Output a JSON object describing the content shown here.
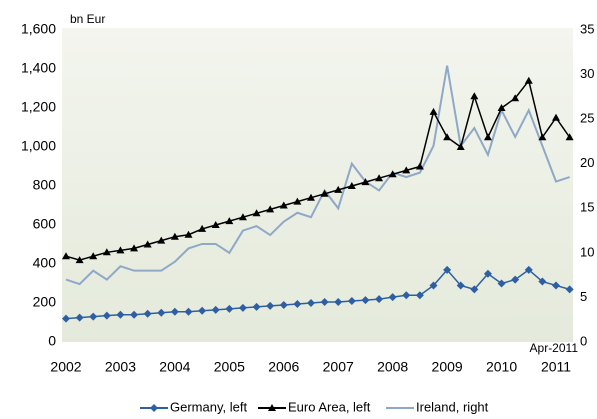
{
  "chart_data": {
    "type": "line",
    "y_unit_label": "bn Eur",
    "annotation": "Apr-2011",
    "x": [
      2002,
      2002.25,
      2002.5,
      2002.75,
      2003,
      2003.25,
      2003.5,
      2003.75,
      2004,
      2004.25,
      2004.5,
      2004.75,
      2005,
      2005.25,
      2005.5,
      2005.75,
      2006,
      2006.25,
      2006.5,
      2006.75,
      2007,
      2007.25,
      2007.5,
      2007.75,
      2008,
      2008.25,
      2008.5,
      2008.75,
      2009,
      2009.25,
      2009.5,
      2009.75,
      2010,
      2010.25,
      2010.5,
      2010.75,
      2011,
      2011.25
    ],
    "xlim": [
      2002,
      2011.33
    ],
    "xticks": [
      2002,
      2003,
      2004,
      2005,
      2006,
      2007,
      2008,
      2009,
      2010,
      2011
    ],
    "ylim": [
      0,
      1600
    ],
    "yticks": [
      0,
      200,
      400,
      600,
      800,
      {
        "value": 1000,
        "label": "1,000"
      },
      {
        "value": 1200,
        "label": "1,200"
      },
      {
        "value": 1400,
        "label": "1,400"
      },
      {
        "value": 1600,
        "label": "1,600"
      }
    ],
    "y2lim": [
      0,
      35
    ],
    "y2ticks": [
      0,
      5,
      10,
      15,
      20,
      25,
      30,
      35
    ],
    "legend": "bottom",
    "series": [
      {
        "name": "Germany, left",
        "color": "#2e5fa3",
        "marker": "diamond",
        "values": [
          120,
          125,
          130,
          135,
          140,
          140,
          145,
          150,
          155,
          155,
          160,
          165,
          170,
          175,
          180,
          185,
          190,
          195,
          200,
          205,
          205,
          210,
          215,
          220,
          230,
          240,
          240,
          290,
          370,
          290,
          270,
          350,
          300,
          320,
          370,
          310,
          290,
          270
        ]
      },
      {
        "name": "Euro Area, left",
        "color": "#000000",
        "marker": "triangle",
        "values": [
          440,
          420,
          440,
          460,
          470,
          480,
          500,
          520,
          540,
          550,
          580,
          600,
          620,
          640,
          660,
          680,
          700,
          720,
          740,
          760,
          780,
          800,
          820,
          840,
          860,
          880,
          900,
          1180,
          1050,
          1000,
          1260,
          1050,
          1200,
          1250,
          1340,
          1050,
          1150,
          1050
        ]
      },
      {
        "name": "Ireland, right",
        "color": "#8fa8c8",
        "marker": "none",
        "axis": "y2",
        "values": [
          7,
          6.5,
          8,
          7,
          8.5,
          8,
          8,
          8,
          9,
          10.5,
          11,
          11,
          10,
          12.5,
          13,
          12,
          13.5,
          14.5,
          14,
          17,
          15,
          20,
          18,
          17,
          19,
          18.5,
          19,
          22,
          31,
          22,
          24,
          21,
          26,
          23,
          26,
          22,
          18,
          18.5
        ]
      }
    ]
  }
}
